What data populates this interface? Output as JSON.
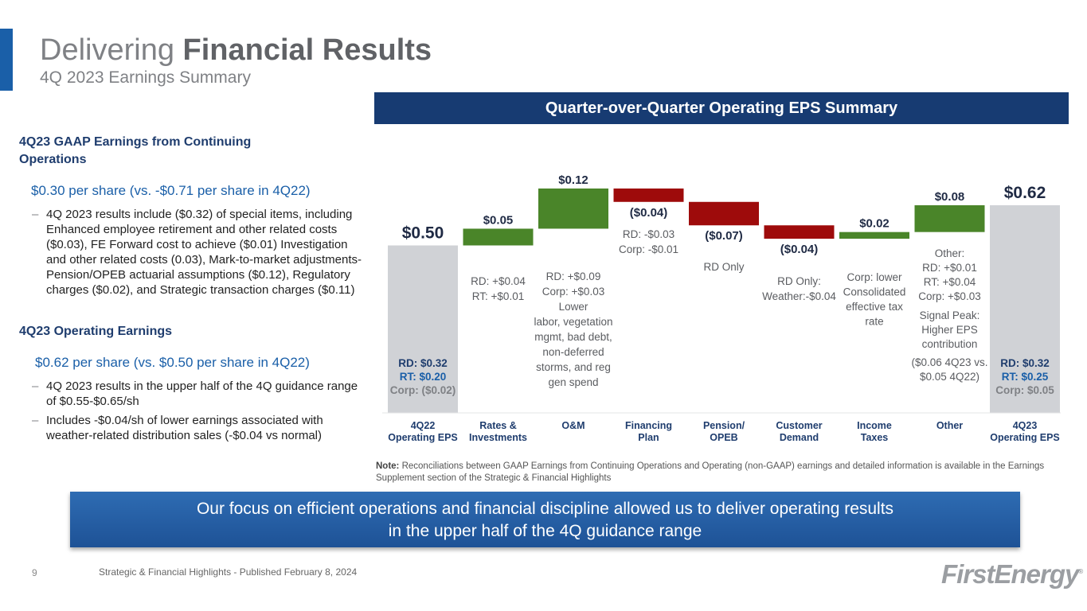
{
  "header": {
    "title_light": "Delivering ",
    "title_bold": "Financial Results",
    "subtitle": "4Q 2023 Earnings Summary"
  },
  "gaap": {
    "heading": "4Q23 GAAP Earnings from Continuing Operations",
    "value": "$0.30 per share (vs. -$0.71 per share in 4Q22)",
    "bullet": "4Q 2023 results include ($0.32) of special items, including Enhanced employee retirement and other related costs ($0.03), FE Forward cost to achieve ($0.01) Investigation and other related costs (0.03), Mark-to-market adjustments-Pension/OPEB actuarial assumptions ($0.12), Regulatory charges ($0.02), and Strategic transaction charges ($0.11)"
  },
  "operating": {
    "heading": "4Q23 Operating Earnings",
    "value": "$0.62 per share (vs. $0.50 per share in 4Q22)",
    "bullets": [
      "4Q 2023 results in the upper half of the 4Q guidance range of $0.55-$0.65/sh",
      "Includes -$0.04/sh of lower earnings associated with weather-related distribution sales (-$0.04 vs normal)"
    ]
  },
  "chart_header": "Quarter-over-Quarter Operating EPS Summary",
  "chart_data": {
    "type": "bar",
    "subtype": "waterfall",
    "title": "Quarter-over-Quarter Operating EPS Summary",
    "ylim": [
      0,
      0.7
    ],
    "grid": false,
    "categories": [
      [
        "4Q22",
        "Operating EPS"
      ],
      [
        "Rates &",
        "Investments"
      ],
      [
        "O&M"
      ],
      [
        "Financing",
        "Plan"
      ],
      [
        "Pension/",
        "OPEB"
      ],
      [
        "Customer",
        "Demand"
      ],
      [
        "Income",
        "Taxes"
      ],
      [
        "Other"
      ],
      [
        "4Q23",
        "Operating EPS"
      ]
    ],
    "values": [
      0.5,
      0.05,
      0.12,
      -0.04,
      -0.07,
      -0.04,
      0.02,
      0.08,
      0.62
    ],
    "kinds": [
      "total",
      "delta",
      "delta",
      "delta",
      "delta",
      "delta",
      "delta",
      "delta",
      "total"
    ],
    "value_labels": [
      "$0.50",
      "$0.05",
      "$0.12",
      "($0.04)",
      "($0.07)",
      "($0.04)",
      "$0.02",
      "$0.08",
      "$0.62"
    ],
    "colors": {
      "total": "#d0d2d6",
      "increase": "#4a8529",
      "decrease": "#9e0b0b"
    },
    "annotations": [
      [
        [
          "RD: $0.32",
          "#1f3d6e"
        ],
        [
          "RT: $0.20",
          "#1a5fa8"
        ],
        [
          "Corp: ($0.02)",
          "#7f8185"
        ]
      ],
      [
        [
          "RD: +$0.04"
        ],
        [
          "RT: +$0.01"
        ]
      ],
      [
        [
          "RD: +$0.09"
        ],
        [
          "Corp: +$0.03"
        ],
        [
          "Lower"
        ],
        [
          "labor, vegetation"
        ],
        [
          "mgmt, bad debt,"
        ],
        [
          "non-deferred"
        ],
        [
          "storms, and reg"
        ],
        [
          "gen spend"
        ]
      ],
      [
        [
          "RD: -$0.03"
        ],
        [
          "Corp: -$0.01"
        ]
      ],
      [
        [
          "RD Only"
        ]
      ],
      [
        [
          "RD Only:"
        ],
        [
          "Weather:-$0.04"
        ]
      ],
      [
        [
          "Corp: lower"
        ],
        [
          "Consolidated"
        ],
        [
          "effective tax"
        ],
        [
          "rate"
        ]
      ],
      [
        [
          "Other:"
        ],
        [
          "RD: +$0.01"
        ],
        [
          "RT: +$0.04"
        ],
        [
          "Corp: +$0.03"
        ],
        [
          "Signal Peak:"
        ],
        [
          "Higher EPS"
        ],
        [
          "contribution"
        ],
        [
          "($0.06 4Q23 vs."
        ],
        [
          "$0.05 4Q22)"
        ]
      ],
      [
        [
          "RD: $0.32",
          "#1f3d6e"
        ],
        [
          "RT: $0.25",
          "#1a5fa8"
        ],
        [
          "Corp: $0.05",
          "#7f8185"
        ]
      ]
    ]
  },
  "note": {
    "label": "Note:",
    "text": " Reconciliations between GAAP Earnings from Continuing Operations and Operating (non-GAAP) earnings and detailed information is available in the Earnings Supplement section of the Strategic & Financial Highlights"
  },
  "banner": {
    "line1": "Our focus on efficient operations and financial discipline allowed us to deliver operating results",
    "line2": "in the upper half of the 4Q guidance range"
  },
  "footer": {
    "page_number": "9",
    "text": "Strategic & Financial Highlights - Published February 8, 2024",
    "logo": "FirstEnergy"
  }
}
